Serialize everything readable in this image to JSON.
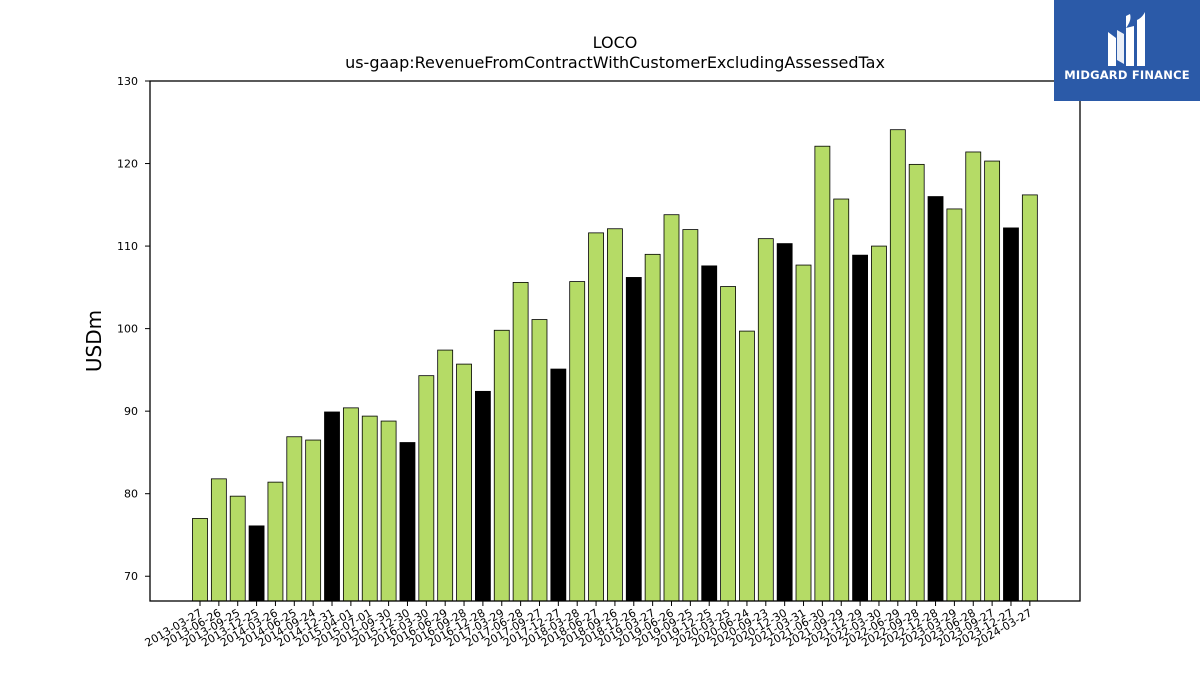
{
  "chart_data": {
    "type": "bar",
    "title": "LOCO",
    "subtitle": "us-gaap:RevenueFromContractWithCustomerExcludingAssessedTax",
    "xlabel": "",
    "ylabel": "USDm",
    "ylim": [
      67,
      130
    ],
    "yticks": [
      70,
      80,
      90,
      100,
      110,
      120,
      130
    ],
    "grid": false,
    "colors": {
      "quarter": "#b5db66",
      "annual": "#000000",
      "edge": "#000000"
    },
    "categories": [
      "2013-03-27",
      "2013-06-26",
      "2013-09-25",
      "2013-12-25",
      "2014-03-26",
      "2014-06-25",
      "2014-09-24",
      "2014-12-31",
      "2015-04-01",
      "2015-07-01",
      "2015-09-30",
      "2015-12-30",
      "2016-03-30",
      "2016-06-29",
      "2016-09-28",
      "2016-12-28",
      "2017-03-29",
      "2017-06-28",
      "2017-09-27",
      "2017-12-27",
      "2018-03-28",
      "2018-06-27",
      "2018-09-26",
      "2018-12-26",
      "2019-03-27",
      "2019-06-26",
      "2019-09-25",
      "2019-12-25",
      "2020-03-25",
      "2020-06-24",
      "2020-09-23",
      "2020-12-30",
      "2021-03-31",
      "2021-06-30",
      "2021-09-29",
      "2021-12-29",
      "2022-03-30",
      "2022-06-29",
      "2022-09-28",
      "2022-12-28",
      "2023-03-29",
      "2023-06-28",
      "2023-09-27",
      "2023-12-27",
      "2024-03-27"
    ],
    "values": [
      77.0,
      81.8,
      79.7,
      76.1,
      81.4,
      86.9,
      86.5,
      89.9,
      90.4,
      89.4,
      88.8,
      86.2,
      94.3,
      97.4,
      95.7,
      92.4,
      99.8,
      105.6,
      101.1,
      95.1,
      105.7,
      111.6,
      112.1,
      106.2,
      109.0,
      113.8,
      112.0,
      107.6,
      105.1,
      99.7,
      110.9,
      110.3,
      107.7,
      122.1,
      115.7,
      108.9,
      110.0,
      124.1,
      119.9,
      116.0,
      114.5,
      121.4,
      120.3,
      112.2,
      116.2
    ],
    "highlight": [
      false,
      false,
      false,
      true,
      false,
      false,
      false,
      true,
      false,
      false,
      false,
      true,
      false,
      false,
      false,
      true,
      false,
      false,
      false,
      true,
      false,
      false,
      false,
      true,
      false,
      false,
      false,
      true,
      false,
      false,
      false,
      true,
      false,
      false,
      false,
      true,
      false,
      false,
      false,
      true,
      false,
      false,
      false,
      true,
      false
    ]
  },
  "logo": {
    "text": "MIDGARD FINANCE",
    "icon": "midgard-logo-icon",
    "bg": "#2b5aa8"
  }
}
